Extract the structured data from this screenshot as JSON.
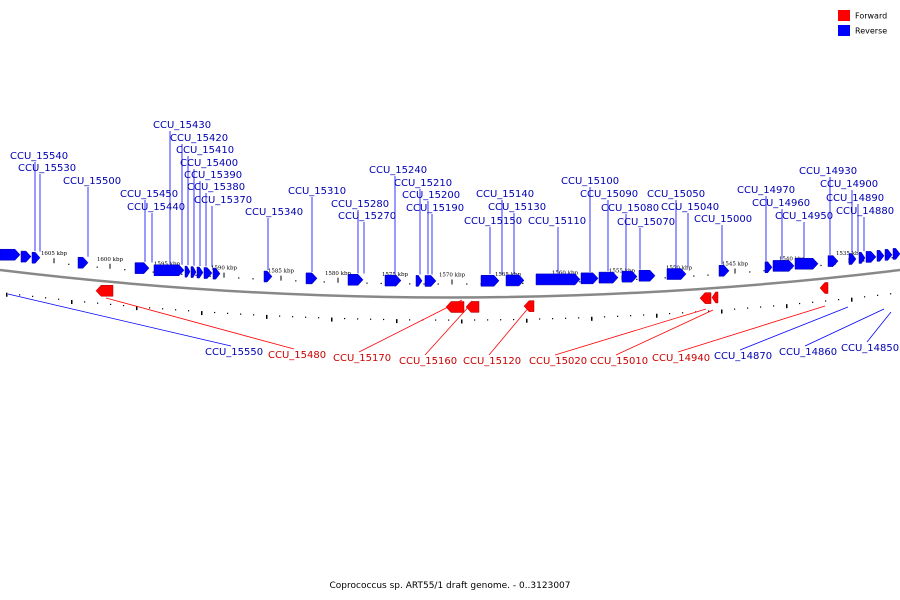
{
  "legend": [
    {
      "label": "Forward",
      "color": "#ff0000"
    },
    {
      "label": "Reverse",
      "color": "#0000ff"
    }
  ],
  "caption": "Coprococcus sp. ART55/1 draft genome. - 0..3123007",
  "scale_ticks": [
    "1605 kbp",
    "1600 kbp",
    "1595 kbp",
    "1590 kbp",
    "1585 kbp",
    "1580 kbp",
    "1575 kbp",
    "1570 kbp",
    "1565 kbp",
    "1560 kbp",
    "1555 kbp",
    "1550 kbp",
    "1545 kbp",
    "1540 kbp",
    "1535 kbp"
  ],
  "reverse_labels": [
    "CCU_15540",
    "CCU_15530",
    "CCU_15500",
    "CCU_15430",
    "CCU_15420",
    "CCU_15410",
    "CCU_15400",
    "CCU_15390",
    "CCU_15380",
    "CCU_15370",
    "CCU_15450",
    "CCU_15440",
    "CCU_15340",
    "CCU_15310",
    "CCU_15280",
    "CCU_15270",
    "CCU_15240",
    "CCU_15210",
    "CCU_15200",
    "CCU_15190",
    "CCU_15140",
    "CCU_15130",
    "CCU_15150",
    "CCU_15110",
    "CCU_15100",
    "CCU_15090",
    "CCU_15080",
    "CCU_15070",
    "CCU_15050",
    "CCU_15040",
    "CCU_15000",
    "CCU_14970",
    "CCU_14960",
    "CCU_14950",
    "CCU_14930",
    "CCU_14900",
    "CCU_14890",
    "CCU_14880"
  ],
  "bottom_labels": [
    {
      "text": "CCU_15550",
      "strand": "reverse"
    },
    {
      "text": "CCU_15480",
      "strand": "forward"
    },
    {
      "text": "CCU_15170",
      "strand": "forward"
    },
    {
      "text": "CCU_15160",
      "strand": "forward"
    },
    {
      "text": "CCU_15120",
      "strand": "forward"
    },
    {
      "text": "CCU_15020",
      "strand": "forward"
    },
    {
      "text": "CCU_15010",
      "strand": "forward"
    },
    {
      "text": "CCU_14940",
      "strand": "forward"
    },
    {
      "text": "CCU_14870",
      "strand": "reverse"
    },
    {
      "text": "CCU_14860",
      "strand": "reverse"
    },
    {
      "text": "CCU_14850",
      "strand": "reverse"
    }
  ]
}
